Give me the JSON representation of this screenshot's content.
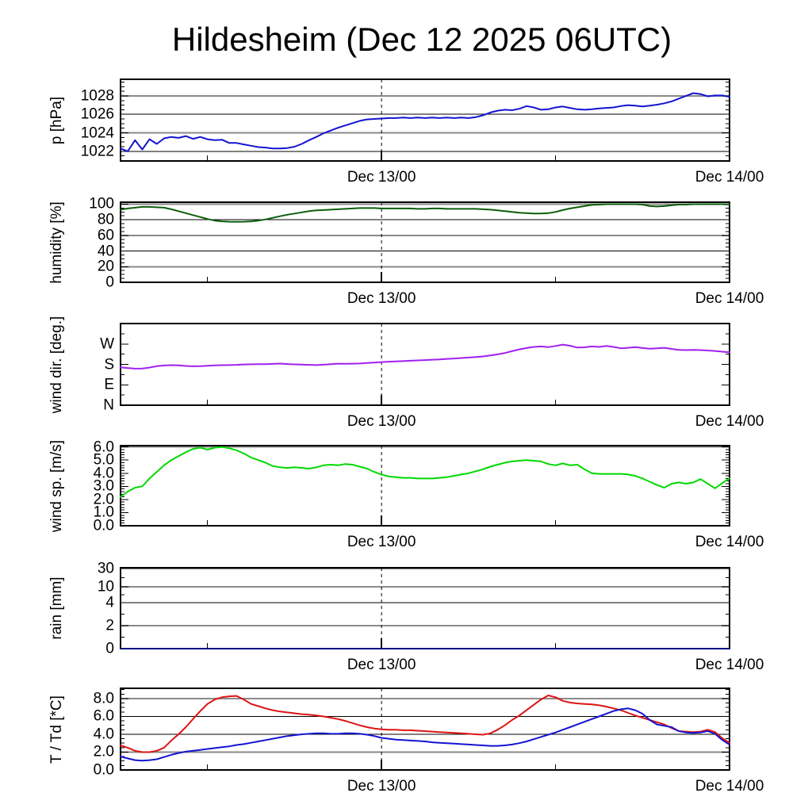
{
  "title": "Hildesheim (Dec 12 2025 06UTC)",
  "colors": {
    "pressure": "#1414d2",
    "humidity": "#0a5f0a",
    "wind_dir": "#a020f0",
    "wind_speed": "#00d900",
    "rain": "#000080",
    "temperature": "#dd1414",
    "dewpoint": "#1414d2",
    "grid_gray": "#8a8a8a",
    "grid_black": "#000000"
  },
  "x_axis": {
    "span_hours": 42,
    "labels": [
      {
        "label": "Dec 13/00",
        "t_hours": 18
      },
      {
        "label": "Dec 14/00",
        "t_hours": 42
      }
    ],
    "minor_tick_hours": [
      6,
      30
    ],
    "dashed_line_hour": 18
  },
  "chart_data": [
    {
      "type": "line",
      "panel": "pressure",
      "ylabel": "p [hPa]",
      "ylim": [
        1020.95,
        1029.8
      ],
      "x_step_hours": 0.5,
      "x_start_hours": 0,
      "yticks": [
        {
          "v": 1022,
          "label": "1022"
        },
        {
          "v": 1024,
          "label": "1024"
        },
        {
          "v": 1026,
          "label": "1026"
        },
        {
          "v": 1028,
          "label": "1028"
        }
      ],
      "minor_step": 0.5,
      "gridlines": [
        {
          "v": 1022,
          "style": "thin"
        },
        {
          "v": 1024,
          "style": "thick"
        },
        {
          "v": 1026,
          "style": "thin"
        },
        {
          "v": 1028,
          "style": "thick"
        }
      ],
      "series": [
        {
          "name": "pressure",
          "color_key": "pressure",
          "values": [
            1022.3,
            1022.0,
            1023.2,
            1022.2,
            1023.3,
            1022.8,
            1023.4,
            1023.55,
            1023.45,
            1023.65,
            1023.35,
            1023.55,
            1023.3,
            1023.2,
            1023.25,
            1022.9,
            1022.9,
            1022.75,
            1022.6,
            1022.45,
            1022.4,
            1022.3,
            1022.3,
            1022.35,
            1022.5,
            1022.8,
            1023.2,
            1023.55,
            1023.95,
            1024.25,
            1024.55,
            1024.8,
            1025.05,
            1025.3,
            1025.45,
            1025.5,
            1025.55,
            1025.6,
            1025.6,
            1025.65,
            1025.6,
            1025.65,
            1025.6,
            1025.65,
            1025.6,
            1025.65,
            1025.6,
            1025.65,
            1025.6,
            1025.7,
            1025.9,
            1026.2,
            1026.4,
            1026.5,
            1026.45,
            1026.6,
            1026.9,
            1026.75,
            1026.5,
            1026.55,
            1026.75,
            1026.85,
            1026.7,
            1026.55,
            1026.5,
            1026.55,
            1026.65,
            1026.7,
            1026.75,
            1026.9,
            1027.0,
            1026.95,
            1026.85,
            1026.95,
            1027.05,
            1027.2,
            1027.4,
            1027.7,
            1028.0,
            1028.3,
            1028.2,
            1027.95,
            1028.05,
            1028.05,
            1027.9
          ]
        }
      ]
    },
    {
      "type": "line",
      "panel": "humidity",
      "ylabel": "humidity [%]",
      "ylim": [
        0,
        102.5
      ],
      "x_step_hours": 0.5,
      "x_start_hours": 0,
      "yticks": [
        {
          "v": 0,
          "label": "0"
        },
        {
          "v": 20,
          "label": "20"
        },
        {
          "v": 40,
          "label": "40"
        },
        {
          "v": 60,
          "label": "60"
        },
        {
          "v": 80,
          "label": "80"
        },
        {
          "v": 100,
          "label": "100"
        }
      ],
      "minor_step": 5,
      "gridlines": [
        {
          "v": 20,
          "style": "thick"
        },
        {
          "v": 40,
          "style": "thin"
        },
        {
          "v": 60,
          "style": "thick"
        },
        {
          "v": 80,
          "style": "thin"
        },
        {
          "v": 100,
          "style": "thick"
        }
      ],
      "series": [
        {
          "name": "relative humidity",
          "color_key": "humidity",
          "values": [
            93,
            94.5,
            95.5,
            96.5,
            96.5,
            96,
            95.5,
            93.5,
            91,
            88.5,
            86,
            83.5,
            81,
            79,
            78,
            77.5,
            77.3,
            77.5,
            78,
            79,
            80.5,
            82.5,
            84.5,
            86.5,
            88,
            89.5,
            91,
            92,
            92.5,
            93,
            93.5,
            94,
            94.5,
            95,
            95,
            95,
            94.5,
            94.5,
            94.5,
            94.5,
            94.5,
            94,
            94,
            94.5,
            94.5,
            94,
            94,
            94,
            94,
            94,
            93.5,
            93,
            92,
            91,
            90,
            89,
            88.5,
            88,
            88,
            88.5,
            90,
            92.5,
            94.5,
            96,
            97.5,
            99,
            99.5,
            100,
            100,
            100,
            100,
            100,
            99.5,
            97.5,
            97,
            97.5,
            98.5,
            99.5,
            99.5,
            100,
            100,
            100,
            100,
            100,
            99.5
          ]
        }
      ]
    },
    {
      "type": "line",
      "panel": "wind_direction",
      "ylabel": "wind dir. [deg.]",
      "ylim": [
        0,
        360
      ],
      "x_step_hours": 0.5,
      "x_start_hours": 0,
      "yticks": [
        {
          "v": 0,
          "label": "N"
        },
        {
          "v": 90,
          "label": "E"
        },
        {
          "v": 180,
          "label": "S"
        },
        {
          "v": 270,
          "label": "W"
        }
      ],
      "minor_step": 45,
      "gridlines": [],
      "series": [
        {
          "name": "wind direction",
          "color_key": "wind_dir",
          "values": [
            167,
            164,
            161,
            161.5,
            166,
            172,
            175,
            176.5,
            175.5,
            173,
            171.5,
            172,
            174,
            175.5,
            176.5,
            177,
            178,
            179.5,
            180.5,
            181,
            181,
            182,
            183.5,
            181.5,
            180,
            179,
            178,
            177,
            178.5,
            181,
            183,
            182.5,
            183,
            184,
            186,
            188,
            190,
            192,
            193,
            194.5,
            196,
            197.5,
            199,
            200.5,
            202,
            204,
            206,
            208,
            210,
            212,
            215,
            219,
            224,
            230,
            238,
            246,
            252,
            257,
            259,
            256,
            261,
            267,
            262,
            254,
            255,
            259,
            257,
            261,
            257,
            251,
            253,
            256,
            252,
            249,
            251,
            253,
            248,
            244,
            243,
            244,
            243,
            241,
            239,
            236,
            233
          ]
        }
      ]
    },
    {
      "type": "line",
      "panel": "wind_speed",
      "ylabel": "wind sp. [m/s]",
      "ylim": [
        0,
        6.1
      ],
      "x_step_hours": 0.5,
      "x_start_hours": 0,
      "yticks": [
        {
          "v": 0,
          "label": "0.0"
        },
        {
          "v": 1,
          "label": "1.0"
        },
        {
          "v": 2,
          "label": "2.0"
        },
        {
          "v": 3,
          "label": "3.0"
        },
        {
          "v": 4,
          "label": "4.0"
        },
        {
          "v": 5,
          "label": "5.0"
        },
        {
          "v": 6,
          "label": "6.0"
        }
      ],
      "minor_step": 0.2,
      "gridlines": [
        {
          "v": 6,
          "style": "thick"
        }
      ],
      "series": [
        {
          "name": "wind speed",
          "color_key": "wind_speed",
          "values": [
            2.2,
            2.6,
            2.9,
            3.0,
            3.6,
            4.1,
            4.6,
            5.0,
            5.3,
            5.6,
            5.85,
            5.95,
            5.8,
            5.95,
            6.0,
            5.9,
            5.75,
            5.5,
            5.2,
            5.0,
            4.8,
            4.55,
            4.45,
            4.4,
            4.45,
            4.4,
            4.35,
            4.45,
            4.6,
            4.65,
            4.6,
            4.7,
            4.65,
            4.5,
            4.35,
            4.1,
            3.9,
            3.75,
            3.7,
            3.65,
            3.65,
            3.6,
            3.6,
            3.6,
            3.65,
            3.7,
            3.8,
            3.9,
            4.0,
            4.15,
            4.3,
            4.5,
            4.65,
            4.8,
            4.9,
            4.95,
            5.0,
            4.95,
            4.9,
            4.7,
            4.6,
            4.75,
            4.6,
            4.65,
            4.3,
            4.0,
            3.95,
            3.95,
            3.95,
            3.95,
            3.9,
            3.8,
            3.6,
            3.35,
            3.1,
            2.9,
            3.2,
            3.3,
            3.2,
            3.3,
            3.55,
            3.2,
            2.85,
            3.25,
            3.6
          ]
        }
      ]
    },
    {
      "type": "line",
      "panel": "rain",
      "ylabel": "rain [mm]",
      "scale_points": [
        {
          "v": 0,
          "frac": 0
        },
        {
          "v": 2,
          "frac": 0.284
        },
        {
          "v": 4,
          "frac": 0.569
        },
        {
          "v": 10,
          "frac": 0.765
        },
        {
          "v": 30,
          "frac": 0.99
        }
      ],
      "yticks": [
        {
          "v": 0,
          "label": "0"
        },
        {
          "v": 2,
          "label": "2"
        },
        {
          "v": 4,
          "label": "4"
        },
        {
          "v": 10,
          "label": "10"
        },
        {
          "v": 30,
          "label": "30"
        }
      ],
      "minor_fracs": [
        0.142,
        0.427,
        0.667,
        0.878
      ],
      "gridlines": [
        {
          "v": 2,
          "style": "thick"
        },
        {
          "v": 4,
          "style": "thin"
        },
        {
          "v": 10,
          "style": "thick"
        },
        {
          "v": 30,
          "style": "thin"
        }
      ],
      "series": [
        {
          "name": "rain",
          "color_key": "rain",
          "x": [
            0,
            42
          ],
          "values": [
            0,
            0
          ]
        }
      ]
    },
    {
      "type": "line",
      "panel": "temperature_dewpoint",
      "ylabel": "T / Td [*C]",
      "ylim": [
        0,
        9.15
      ],
      "x_step_hours": 0.5,
      "x_start_hours": 0,
      "yticks": [
        {
          "v": 0,
          "label": "0.0"
        },
        {
          "v": 2,
          "label": "2.0"
        },
        {
          "v": 4,
          "label": "4.0"
        },
        {
          "v": 6,
          "label": "6.0"
        },
        {
          "v": 8,
          "label": "8.0"
        }
      ],
      "minor_step": 0.5,
      "gridlines": [
        {
          "v": 2,
          "style": "thick"
        },
        {
          "v": 4,
          "style": "thin"
        },
        {
          "v": 6,
          "style": "thin"
        },
        {
          "v": 8,
          "style": "thick"
        }
      ],
      "series": [
        {
          "name": "temperature",
          "color_key": "temperature",
          "values": [
            2.75,
            2.5,
            2.15,
            2.0,
            2.0,
            2.15,
            2.5,
            3.3,
            4.0,
            4.8,
            5.7,
            6.6,
            7.4,
            7.9,
            8.15,
            8.25,
            8.3,
            7.9,
            7.4,
            7.15,
            6.9,
            6.7,
            6.55,
            6.45,
            6.35,
            6.25,
            6.2,
            6.1,
            6.0,
            5.85,
            5.7,
            5.5,
            5.25,
            5.0,
            4.8,
            4.65,
            4.55,
            4.5,
            4.5,
            4.45,
            4.45,
            4.4,
            4.35,
            4.3,
            4.25,
            4.2,
            4.15,
            4.1,
            4.05,
            4.0,
            3.95,
            4.1,
            4.5,
            5.0,
            5.6,
            6.1,
            6.7,
            7.3,
            7.9,
            8.35,
            8.15,
            7.75,
            7.55,
            7.45,
            7.4,
            7.35,
            7.25,
            7.1,
            6.9,
            6.7,
            6.4,
            6.1,
            5.85,
            5.6,
            5.35,
            5.1,
            4.7,
            4.35,
            4.3,
            4.25,
            4.3,
            4.5,
            4.25,
            3.55,
            3.05
          ]
        },
        {
          "name": "dewpoint",
          "color_key": "dewpoint",
          "values": [
            1.5,
            1.3,
            1.1,
            1.05,
            1.1,
            1.2,
            1.45,
            1.7,
            1.9,
            2.05,
            2.15,
            2.25,
            2.35,
            2.45,
            2.55,
            2.65,
            2.8,
            2.9,
            3.05,
            3.2,
            3.35,
            3.5,
            3.65,
            3.8,
            3.9,
            4.0,
            4.05,
            4.1,
            4.1,
            4.05,
            4.05,
            4.1,
            4.1,
            4.05,
            3.95,
            3.8,
            3.6,
            3.5,
            3.4,
            3.35,
            3.3,
            3.25,
            3.2,
            3.1,
            3.05,
            3.0,
            2.95,
            2.9,
            2.85,
            2.8,
            2.75,
            2.7,
            2.7,
            2.75,
            2.85,
            3.0,
            3.2,
            3.45,
            3.7,
            3.95,
            4.2,
            4.5,
            4.8,
            5.1,
            5.4,
            5.7,
            6.0,
            6.3,
            6.6,
            6.8,
            6.9,
            6.7,
            6.3,
            5.6,
            5.1,
            4.95,
            4.8,
            4.35,
            4.2,
            4.15,
            4.2,
            4.35,
            4.05,
            3.35,
            2.85
          ]
        }
      ]
    }
  ]
}
